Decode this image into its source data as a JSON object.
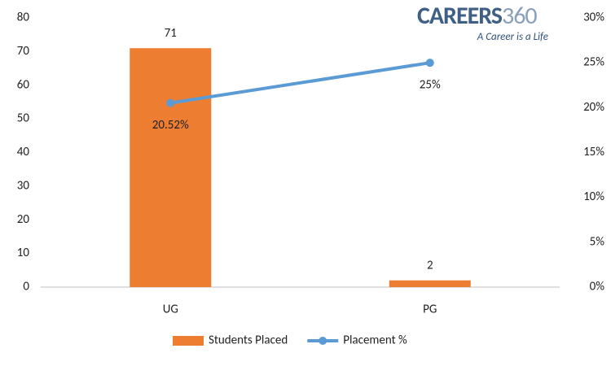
{
  "chart_data": {
    "type": "combo",
    "logo_main": "CAREERS",
    "logo_number": "360",
    "tagline": "A Career is a Life",
    "categories": [
      "UG",
      "PG"
    ],
    "series": [
      {
        "name": "Students Placed",
        "type": "bar",
        "color": "#ed7d31",
        "values": [
          71,
          2
        ]
      },
      {
        "name": "Placement %",
        "type": "line",
        "axis": "y2",
        "color": "#5b9bd5",
        "values": [
          20.52,
          25
        ],
        "value_labels": [
          "20.52%",
          "25%"
        ]
      }
    ],
    "ylim": [
      0,
      80
    ],
    "yticks": [
      0,
      10,
      20,
      30,
      40,
      50,
      60,
      70,
      80
    ],
    "y2lim": [
      0,
      30
    ],
    "y2ticks": [
      {
        "value": 0,
        "label": "0%"
      },
      {
        "value": 5,
        "label": "5%"
      },
      {
        "value": 10,
        "label": "10%"
      },
      {
        "value": 15,
        "label": "15%"
      },
      {
        "value": 20,
        "label": "20%"
      },
      {
        "value": 25,
        "label": "25%"
      },
      {
        "value": 30,
        "label": "30%"
      }
    ],
    "legend": "bottom"
  }
}
